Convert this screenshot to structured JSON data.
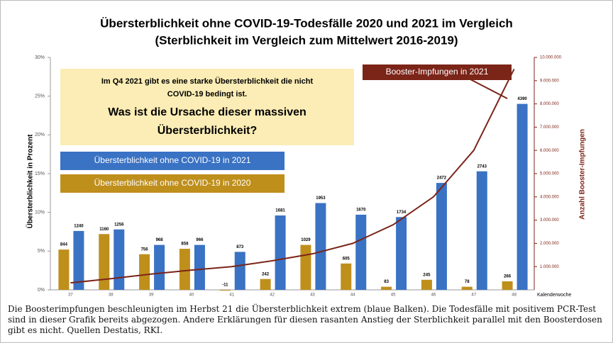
{
  "chart_data": {
    "type": "bar",
    "title": [
      "Übersterblichkeit ohne COVID-19-Todesfälle 2020 und 2021 im Vergleich",
      "(Sterblichkeit im Vergleich zum Mittelwert 2016-2019)"
    ],
    "categories": [
      "37",
      "38",
      "39",
      "40",
      "41",
      "42",
      "43",
      "44",
      "45",
      "46",
      "47",
      "48"
    ],
    "xlabel": "Kalenderwoche",
    "ylabel": "Übersterblichkeit in Prozent",
    "y2label": "Anzahl Booster-Impfungen",
    "ylim": [
      0,
      30
    ],
    "yticks": [
      {
        "value": 0,
        "label": "0%"
      },
      {
        "value": 5,
        "label": "5%"
      },
      {
        "value": 10,
        "label": "10%"
      },
      {
        "value": 15,
        "label": "15%"
      },
      {
        "value": 20,
        "label": "20%"
      },
      {
        "value": 25,
        "label": "25%"
      },
      {
        "value": 30,
        "label": "30%"
      }
    ],
    "y2lim": [
      0,
      10000000
    ],
    "y2ticks": [
      {
        "value": 1000000,
        "label": "1.000.000"
      },
      {
        "value": 2000000,
        "label": "2.000.000"
      },
      {
        "value": 3000000,
        "label": "3.000.000"
      },
      {
        "value": 4000000,
        "label": "4.000.000"
      },
      {
        "value": 5000000,
        "label": "5.000.000"
      },
      {
        "value": 6000000,
        "label": "6.000.000"
      },
      {
        "value": 7000000,
        "label": "7.000.000"
      },
      {
        "value": 8000000,
        "label": "8.000.000"
      },
      {
        "value": 9000000,
        "label": "9.000.000"
      },
      {
        "value": 10000000,
        "label": "10.000.000"
      }
    ],
    "grid": false,
    "series": [
      {
        "name": "Übersterblichkeit ohne COVID-19 in 2020",
        "color": "#bf8f1c",
        "values": [
          5.2,
          7.2,
          4.6,
          5.3,
          -0.1,
          1.4,
          5.8,
          3.4,
          0.4,
          1.3,
          0.4,
          1.1
        ],
        "counts": [
          844,
          1160,
          756,
          858,
          -11,
          242,
          1029,
          605,
          83,
          245,
          78,
          266
        ]
      },
      {
        "name": "Übersterblichkeit ohne COVID-19 in 2021",
        "color": "#3a72c4",
        "values": [
          7.6,
          7.8,
          5.8,
          5.8,
          4.9,
          9.6,
          11.2,
          9.7,
          9.4,
          13.8,
          15.3,
          24.0
        ],
        "counts": [
          1240,
          1256,
          968,
          966,
          873,
          1681,
          1953,
          1670,
          1734,
          2472,
          2743,
          4390
        ]
      },
      {
        "name": "Booster-Impfungen in 2021",
        "color": "#7b2418",
        "axis": "y2",
        "type": "line",
        "values": [
          300000,
          480000,
          680000,
          850000,
          1000000,
          1250000,
          1550000,
          2000000,
          2800000,
          4000000,
          6000000,
          9500000
        ]
      }
    ],
    "annotation": [
      "Im Q4 2021 gibt es eine starke Übersterblichkeit die nicht",
      "COVID-19 bedingt ist.",
      "Was ist die Ursache dieser massiven",
      "Übersterblichkeit?"
    ],
    "caption": "Die Boosterimpfungen beschleunigten im Herbst 21 die Übersterblichkeit extrem (blaue Balken). Die Todesfälle mit positivem PCR-Test sind in dieser Grafik bereits abgezogen. Andere Erklärungen für diesen rasanten Anstieg der Sterblichkeit parallel mit den Boosterdosen gibt es nicht. Quellen Destatis, RKI."
  }
}
